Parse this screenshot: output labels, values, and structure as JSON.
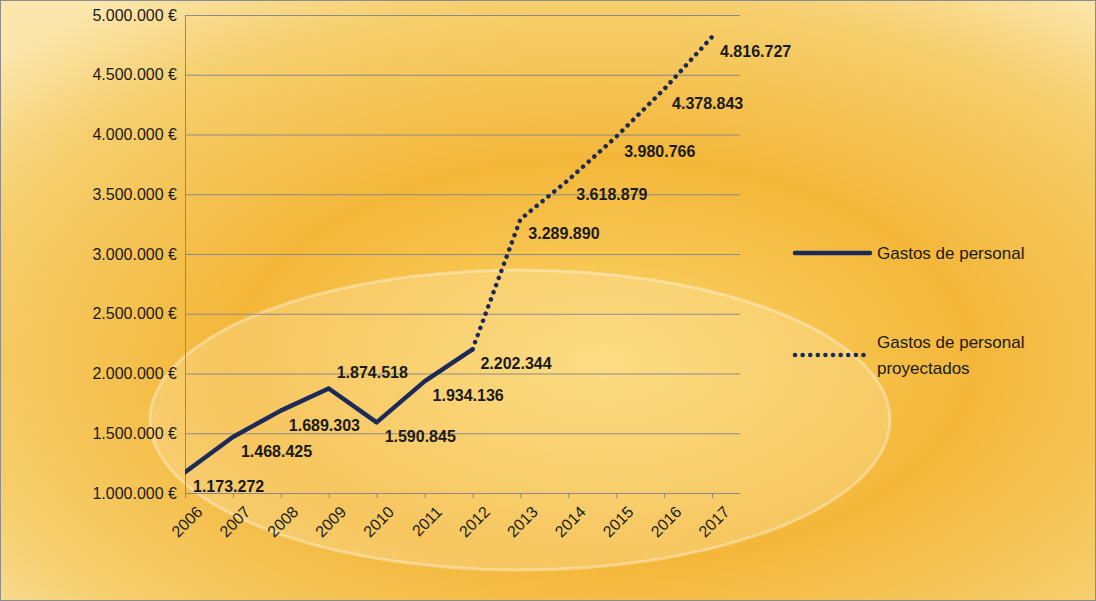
{
  "chart_data": {
    "type": "line",
    "categories": [
      "2006",
      "2007",
      "2008",
      "2009",
      "2010",
      "2011",
      "2012",
      "2013",
      "2014",
      "2015",
      "2016",
      "2017"
    ],
    "series": [
      {
        "name": "Gastos de personal",
        "color": "#1c2a5a",
        "line_style": "solid",
        "values": [
          1173272,
          1468425,
          1689303,
          1874518,
          1590845,
          1934136,
          2202344,
          null,
          null,
          null,
          null,
          null
        ],
        "value_labels": [
          "1.173.272",
          "1.468.425",
          "1.689.303",
          "1.874.518",
          "1.590.845",
          "1.934.136",
          "2.202.344",
          null,
          null,
          null,
          null,
          null
        ]
      },
      {
        "name": "Gastos de personal proyectados",
        "color": "#1c2a5a",
        "line_style": "dotted",
        "values": [
          null,
          null,
          null,
          null,
          null,
          null,
          2202344,
          3289890,
          3618879,
          3980766,
          4378843,
          4816727
        ],
        "value_labels": [
          null,
          null,
          null,
          null,
          null,
          null,
          null,
          "3.289.890",
          "3.618.879",
          "3.980.766",
          "4.378.843",
          "4.816.727"
        ]
      }
    ],
    "ylim": [
      1000000,
      5000000
    ],
    "yticks": [
      {
        "value": 1000000,
        "label": "1.000.000 €"
      },
      {
        "value": 1500000,
        "label": "1.500.000 €"
      },
      {
        "value": 2000000,
        "label": "2.000.000 €"
      },
      {
        "value": 2500000,
        "label": "2.500.000 €"
      },
      {
        "value": 3000000,
        "label": "3.000.000 €"
      },
      {
        "value": 3500000,
        "label": "3.500.000 €"
      },
      {
        "value": 4000000,
        "label": "4.000.000 €"
      },
      {
        "value": 4500000,
        "label": "4.500.000 €"
      },
      {
        "value": 5000000,
        "label": "5.000.000 €"
      }
    ],
    "grid": true,
    "data_labels": true,
    "legend": "right"
  }
}
